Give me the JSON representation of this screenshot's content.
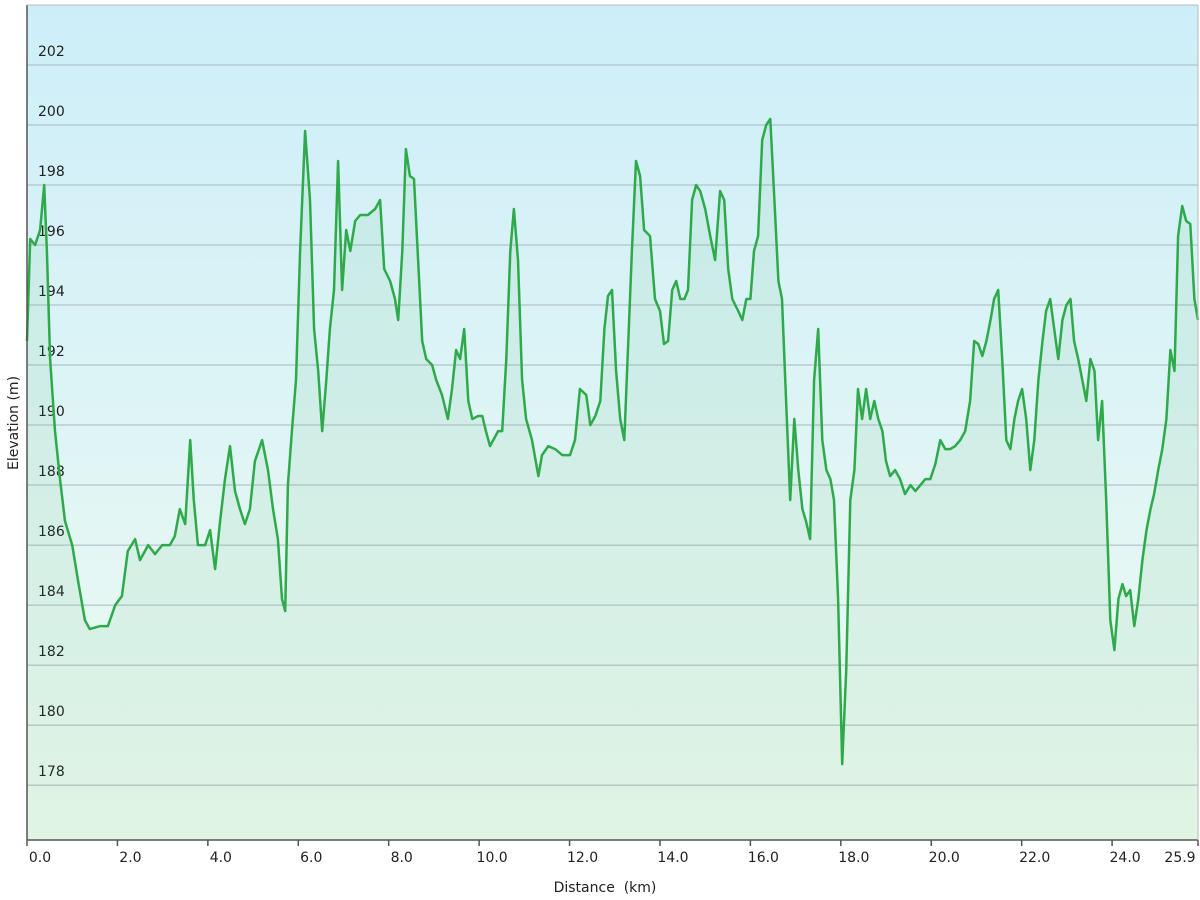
{
  "chart_data": {
    "type": "area",
    "xlabel": "Distance  (km)",
    "ylabel": "Elevation (m)",
    "color": "#2eaa4a",
    "grid": true,
    "xlim": [
      0,
      25.9
    ],
    "ylim": [
      176.17,
      204
    ],
    "xticks": [
      {
        "value": 0,
        "label": "0.0"
      },
      {
        "value": 2,
        "label": "2.0"
      },
      {
        "value": 4,
        "label": "4.0"
      },
      {
        "value": 6,
        "label": "6.0"
      },
      {
        "value": 8,
        "label": "8.0"
      },
      {
        "value": 10,
        "label": "10.0"
      },
      {
        "value": 12,
        "label": "12.0"
      },
      {
        "value": 14,
        "label": "14.0"
      },
      {
        "value": 16,
        "label": "16.0"
      },
      {
        "value": 18,
        "label": "18.0"
      },
      {
        "value": 20,
        "label": "20.0"
      },
      {
        "value": 22,
        "label": "22.0"
      },
      {
        "value": 24,
        "label": "24.0"
      },
      {
        "value": 25.9,
        "label": "25.9"
      }
    ],
    "yticks": [
      178,
      180,
      182,
      184,
      186,
      188,
      190,
      192,
      194,
      196,
      198,
      200,
      202
    ],
    "x": [
      0,
      0.07,
      0.18,
      0.29,
      0.38,
      0.44,
      0.51,
      0.62,
      0.73,
      0.84,
      1.0,
      1.13,
      1.28,
      1.39,
      1.62,
      1.79,
      1.95,
      2.1,
      2.23,
      2.39,
      2.5,
      2.68,
      2.83,
      2.99,
      3.16,
      3.27,
      3.38,
      3.5,
      3.61,
      3.69,
      3.78,
      3.94,
      4.05,
      4.16,
      4.27,
      4.38,
      4.49,
      4.6,
      4.71,
      4.82,
      4.93,
      5.04,
      5.2,
      5.33,
      5.44,
      5.55,
      5.64,
      5.71,
      5.77,
      5.86,
      5.95,
      6.04,
      6.15,
      6.26,
      6.35,
      6.44,
      6.53,
      6.62,
      6.7,
      6.79,
      6.88,
      6.97,
      7.06,
      7.15,
      7.26,
      7.37,
      7.54,
      7.7,
      7.81,
      7.9,
      8.03,
      8.14,
      8.21,
      8.3,
      8.38,
      8.47,
      8.56,
      8.65,
      8.74,
      8.83,
      8.96,
      9.05,
      9.18,
      9.31,
      9.4,
      9.49,
      9.58,
      9.67,
      9.76,
      9.85,
      9.98,
      10.07,
      10.15,
      10.24,
      10.42,
      10.51,
      10.6,
      10.69,
      10.77,
      10.86,
      10.95,
      11.04,
      11.17,
      11.31,
      11.39,
      11.53,
      11.68,
      11.84,
      12.01,
      12.12,
      12.23,
      12.37,
      12.46,
      12.57,
      12.68,
      12.77,
      12.85,
      12.94,
      13.03,
      13.12,
      13.21,
      13.3,
      13.38,
      13.47,
      13.56,
      13.65,
      13.78,
      13.89,
      14.0,
      14.09,
      14.18,
      14.27,
      14.36,
      14.45,
      14.54,
      14.62,
      14.71,
      14.8,
      14.89,
      15.0,
      15.11,
      15.22,
      15.33,
      15.42,
      15.51,
      15.6,
      15.73,
      15.82,
      15.91,
      16.0,
      16.08,
      16.17,
      16.26,
      16.35,
      16.44,
      16.53,
      16.62,
      16.7,
      16.79,
      16.88,
      16.97,
      17.06,
      17.15,
      17.23,
      17.32,
      17.41,
      17.5,
      17.59,
      17.68,
      17.77,
      17.85,
      17.94,
      18.03,
      18.12,
      18.21,
      18.3,
      18.38,
      18.47,
      18.56,
      18.65,
      18.74,
      18.83,
      18.92,
      19.0,
      19.09,
      19.2,
      19.31,
      19.42,
      19.54,
      19.65,
      19.76,
      19.87,
      19.98,
      20.09,
      20.2,
      20.31,
      20.42,
      20.53,
      20.64,
      20.75,
      20.86,
      20.95,
      21.04,
      21.13,
      21.22,
      21.31,
      21.39,
      21.48,
      21.57,
      21.66,
      21.75,
      21.84,
      21.92,
      22.01,
      22.1,
      22.19,
      22.28,
      22.37,
      22.46,
      22.54,
      22.63,
      22.72,
      22.81,
      22.9,
      22.99,
      23.08,
      23.16,
      23.25,
      23.34,
      23.43,
      23.52,
      23.61,
      23.69,
      23.78,
      23.87,
      23.96,
      24.05,
      24.14,
      24.23,
      24.31,
      24.4,
      24.49,
      24.58,
      24.67,
      24.76,
      24.85,
      24.93,
      25.02,
      25.11,
      25.2,
      25.29,
      25.38,
      25.46,
      25.55,
      25.64,
      25.73,
      25.82,
      25.9
    ],
    "values": [
      192.8,
      196.2,
      196,
      196.5,
      198,
      195.8,
      192.2,
      189.8,
      188.2,
      186.8,
      186,
      184.8,
      183.5,
      183.2,
      183.3,
      183.3,
      184,
      184.3,
      185.8,
      186.2,
      185.5,
      186,
      185.7,
      186,
      186,
      186.3,
      187.2,
      186.7,
      189.5,
      187.5,
      186,
      186,
      186.5,
      185.2,
      186.8,
      188.2,
      189.3,
      187.8,
      187.2,
      186.7,
      187.2,
      188.8,
      189.5,
      188.5,
      187.2,
      186.2,
      184.2,
      183.8,
      188,
      189.8,
      191.5,
      195.8,
      199.8,
      197.5,
      193.2,
      191.8,
      189.8,
      191.5,
      193.2,
      194.5,
      198.8,
      194.5,
      196.5,
      195.8,
      196.8,
      197,
      197,
      197.2,
      197.5,
      195.2,
      194.8,
      194.2,
      193.5,
      195.8,
      199.2,
      198.3,
      198.2,
      195.5,
      192.8,
      192.2,
      192,
      191.5,
      191,
      190.2,
      191.2,
      192.5,
      192.2,
      193.2,
      190.8,
      190.2,
      190.3,
      190.3,
      189.8,
      189.3,
      189.8,
      189.8,
      192.2,
      195.8,
      197.2,
      195.5,
      191.5,
      190.2,
      189.5,
      188.3,
      189,
      189.3,
      189.2,
      189,
      189,
      189.5,
      191.2,
      191,
      190,
      190.3,
      190.8,
      193.2,
      194.3,
      194.5,
      191.8,
      190.2,
      189.5,
      192.8,
      195.8,
      198.8,
      198.3,
      196.5,
      196.3,
      194.2,
      193.8,
      192.7,
      192.8,
      194.5,
      194.8,
      194.2,
      194.2,
      194.5,
      197.5,
      198,
      197.8,
      197.2,
      196.3,
      195.5,
      197.8,
      197.5,
      195.2,
      194.2,
      193.8,
      193.5,
      194.2,
      194.2,
      195.8,
      196.3,
      199.5,
      200,
      200.2,
      197.5,
      194.8,
      194.2,
      190.8,
      187.5,
      190.2,
      188.5,
      187.2,
      186.8,
      186.2,
      191.5,
      193.2,
      189.5,
      188.5,
      188.2,
      187.5,
      184.2,
      178.7,
      181.8,
      187.5,
      188.5,
      191.2,
      190.2,
      191.2,
      190.2,
      190.8,
      190.2,
      189.8,
      188.8,
      188.3,
      188.5,
      188.2,
      187.7,
      188,
      187.8,
      188,
      188.2,
      188.2,
      188.7,
      189.5,
      189.2,
      189.2,
      189.3,
      189.5,
      189.8,
      190.8,
      192.8,
      192.7,
      192.3,
      192.8,
      193.5,
      194.2,
      194.5,
      192.2,
      189.5,
      189.2,
      190.2,
      190.8,
      191.2,
      190.2,
      188.5,
      189.5,
      191.5,
      192.8,
      193.8,
      194.2,
      193.2,
      192.2,
      193.5,
      194,
      194.2,
      192.8,
      192.2,
      191.5,
      190.8,
      192.2,
      191.8,
      189.5,
      190.8,
      187.5,
      183.5,
      182.5,
      184.2,
      184.7,
      184.3,
      184.5,
      183.3,
      184.2,
      185.5,
      186.5,
      187.2,
      187.7,
      188.5,
      189.2,
      190.2,
      192.5,
      191.8,
      196.3,
      197.3,
      196.8,
      196.7,
      194.2,
      193.5
    ]
  }
}
